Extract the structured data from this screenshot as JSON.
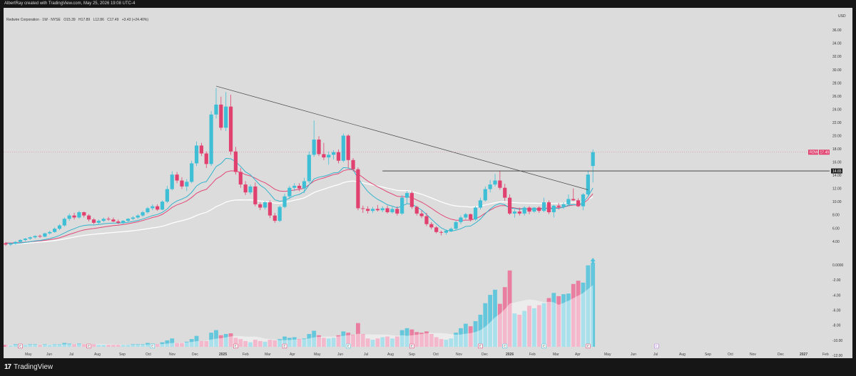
{
  "header": {
    "attribution": "AlbertRay created with TradingView.com, May 25, 2026 19:08 UTC-4"
  },
  "legend": {
    "symbol": "Redwire Corporation · 1W · NYSE",
    "open": "O15.39",
    "high": "H17.89",
    "low": "L12.86",
    "close": "C17.49",
    "change": "+3.43 (+24.40%)"
  },
  "currency": "USD",
  "brand": {
    "logo": "17",
    "name": "TradingView"
  },
  "colors": {
    "up": "#3ebfd6",
    "down": "#e0416f",
    "ema_fast": "#35b3cc",
    "ema_mid": "#e14a78",
    "ema_slow": "#ffffff",
    "vol_up": "#4fc3dc",
    "vol_down": "#ec6d95"
  },
  "chart_data": {
    "type": "candlestick",
    "timeframe": "1W",
    "symbol": "RDW",
    "y_ticks": [
      "36.00",
      "34.00",
      "32.00",
      "30.00",
      "28.00",
      "26.00",
      "24.00",
      "22.00",
      "20.00",
      "18.00",
      "16.00",
      "14.00",
      "12.00",
      "10.00",
      "8.00",
      "6.00",
      "4.00",
      "0.0000",
      "-2.00",
      "-4.00",
      "-6.00",
      "-8.00",
      "-10.00",
      "-12.00"
    ],
    "x_labels": [
      "May",
      "Jun",
      "Jul",
      "Aug",
      "Sep",
      "Oct",
      "Nov",
      "Dec",
      "2025",
      "Feb",
      "Mar",
      "Apr",
      "May",
      "Jun",
      "Jul",
      "Aug",
      "Sep",
      "Oct",
      "Nov",
      "Dec",
      "2026",
      "Feb",
      "Mar",
      "Apr",
      "May",
      "Jun",
      "Jul",
      "Aug",
      "Sep",
      "Oct",
      "Nov",
      "Dec",
      "2027",
      "Feb"
    ],
    "price_range": [
      2.9,
      37.2
    ],
    "candles": [
      [
        3.7,
        3.9,
        3.3,
        3.5
      ],
      [
        3.5,
        3.8,
        3.3,
        3.7
      ],
      [
        3.7,
        4.0,
        3.5,
        3.9
      ],
      [
        3.9,
        4.3,
        3.8,
        4.2
      ],
      [
        4.2,
        4.5,
        4.0,
        4.4
      ],
      [
        4.4,
        4.7,
        4.2,
        4.6
      ],
      [
        4.6,
        4.9,
        4.4,
        4.8
      ],
      [
        4.8,
        5.0,
        4.5,
        4.7
      ],
      [
        4.7,
        5.3,
        4.6,
        5.2
      ],
      [
        5.2,
        5.6,
        5.0,
        5.4
      ],
      [
        5.4,
        6.1,
        5.3,
        5.9
      ],
      [
        5.9,
        6.6,
        5.7,
        6.4
      ],
      [
        6.4,
        7.6,
        6.2,
        7.4
      ],
      [
        7.4,
        8.2,
        7.1,
        7.9
      ],
      [
        7.9,
        8.3,
        7.3,
        7.6
      ],
      [
        7.6,
        8.6,
        7.4,
        8.4
      ],
      [
        8.4,
        8.5,
        7.6,
        7.9
      ],
      [
        7.9,
        8.1,
        7.0,
        7.3
      ],
      [
        7.3,
        7.5,
        6.6,
        6.8
      ],
      [
        6.8,
        7.3,
        6.5,
        7.1
      ],
      [
        7.1,
        7.6,
        6.9,
        7.4
      ],
      [
        7.4,
        7.7,
        7.1,
        7.3
      ],
      [
        7.3,
        7.6,
        6.9,
        7.0
      ],
      [
        7.0,
        7.3,
        6.6,
        6.8
      ],
      [
        6.8,
        7.2,
        6.6,
        7.1
      ],
      [
        7.1,
        7.5,
        6.9,
        7.4
      ],
      [
        7.4,
        7.8,
        7.2,
        7.6
      ],
      [
        7.6,
        8.1,
        7.4,
        7.9
      ],
      [
        7.9,
        8.6,
        7.7,
        8.4
      ],
      [
        8.4,
        9.2,
        8.2,
        9.0
      ],
      [
        9.0,
        9.6,
        8.7,
        9.3
      ],
      [
        9.3,
        9.6,
        8.6,
        8.8
      ],
      [
        8.8,
        10.2,
        8.7,
        10.0
      ],
      [
        10.0,
        12.4,
        9.8,
        11.9
      ],
      [
        11.9,
        14.6,
        11.7,
        14.1
      ],
      [
        14.1,
        14.5,
        12.8,
        13.2
      ],
      [
        13.2,
        13.7,
        11.9,
        12.3
      ],
      [
        12.3,
        13.4,
        11.6,
        13.0
      ],
      [
        13.0,
        16.2,
        12.8,
        15.8
      ],
      [
        15.8,
        19.1,
        15.4,
        18.5
      ],
      [
        18.5,
        18.9,
        16.9,
        17.3
      ],
      [
        17.3,
        17.6,
        15.1,
        15.7
      ],
      [
        15.7,
        23.7,
        15.4,
        23.2
      ],
      [
        23.2,
        27.2,
        22.6,
        24.7
      ],
      [
        24.7,
        25.9,
        20.8,
        21.2
      ],
      [
        21.2,
        26.6,
        20.7,
        24.4
      ],
      [
        24.4,
        26.2,
        17.1,
        17.6
      ],
      [
        17.6,
        18.3,
        14.1,
        14.5
      ],
      [
        14.5,
        15.1,
        12.1,
        12.6
      ],
      [
        12.6,
        13.1,
        11.0,
        11.4
      ],
      [
        11.4,
        12.6,
        11.1,
        12.3
      ],
      [
        12.3,
        12.9,
        9.3,
        9.6
      ],
      [
        9.6,
        9.9,
        8.7,
        9.1
      ],
      [
        9.1,
        10.1,
        8.8,
        9.9
      ],
      [
        9.9,
        10.2,
        7.5,
        7.9
      ],
      [
        7.9,
        8.3,
        6.8,
        7.1
      ],
      [
        7.1,
        9.4,
        6.9,
        9.2
      ],
      [
        9.2,
        11.2,
        9.0,
        10.8
      ],
      [
        10.8,
        12.4,
        10.4,
        12.1
      ],
      [
        12.1,
        12.8,
        11.6,
        12.4
      ],
      [
        12.4,
        12.8,
        11.6,
        12.0
      ],
      [
        12.0,
        13.6,
        11.3,
        13.1
      ],
      [
        13.1,
        17.6,
        12.8,
        17.1
      ],
      [
        17.1,
        22.3,
        16.8,
        19.4
      ],
      [
        19.4,
        19.9,
        16.9,
        17.2
      ],
      [
        17.2,
        18.9,
        16.3,
        16.7
      ],
      [
        16.7,
        17.6,
        15.6,
        17.1
      ],
      [
        17.1,
        17.8,
        16.4,
        17.5
      ],
      [
        17.5,
        17.9,
        15.8,
        16.2
      ],
      [
        16.2,
        20.3,
        16.0,
        20.0
      ],
      [
        20.0,
        20.2,
        15.1,
        16.3
      ],
      [
        16.3,
        16.6,
        14.6,
        14.9
      ],
      [
        14.9,
        15.2,
        8.7,
        9.0
      ],
      [
        9.0,
        9.4,
        8.3,
        8.9
      ],
      [
        8.9,
        9.3,
        8.2,
        8.6
      ],
      [
        8.6,
        9.2,
        8.3,
        8.9
      ],
      [
        8.9,
        9.5,
        8.5,
        8.7
      ],
      [
        8.7,
        9.3,
        8.4,
        9.0
      ],
      [
        9.0,
        9.4,
        8.2,
        8.4
      ],
      [
        8.4,
        9.2,
        8.2,
        8.9
      ],
      [
        8.9,
        9.3,
        7.9,
        8.2
      ],
      [
        8.2,
        11.0,
        8.0,
        10.6
      ],
      [
        10.6,
        11.6,
        9.7,
        11.3
      ],
      [
        11.3,
        11.6,
        8.9,
        9.2
      ],
      [
        9.2,
        9.4,
        7.9,
        8.2
      ],
      [
        8.2,
        8.7,
        7.5,
        7.8
      ],
      [
        7.8,
        8.3,
        6.3,
        6.6
      ],
      [
        6.6,
        6.9,
        5.8,
        6.1
      ],
      [
        6.1,
        6.3,
        5.2,
        5.4
      ],
      [
        5.4,
        5.6,
        4.9,
        5.3
      ],
      [
        5.3,
        5.8,
        5.0,
        5.6
      ],
      [
        5.6,
        6.1,
        5.4,
        5.9
      ],
      [
        5.9,
        7.1,
        5.7,
        6.9
      ],
      [
        6.9,
        7.9,
        6.6,
        7.6
      ],
      [
        7.6,
        8.3,
        7.3,
        8.1
      ],
      [
        8.1,
        8.2,
        7.0,
        7.3
      ],
      [
        7.3,
        9.3,
        7.1,
        9.1
      ],
      [
        9.1,
        10.6,
        8.8,
        10.2
      ],
      [
        10.2,
        12.3,
        10.0,
        11.9
      ],
      [
        11.9,
        13.3,
        11.4,
        12.6
      ],
      [
        12.6,
        14.2,
        12.3,
        13.2
      ],
      [
        13.2,
        14.7,
        11.8,
        12.1
      ],
      [
        12.1,
        12.7,
        10.1,
        10.6
      ],
      [
        10.6,
        11.1,
        8.0,
        8.2
      ],
      [
        8.2,
        8.8,
        7.6,
        8.5
      ],
      [
        8.5,
        9.1,
        7.9,
        8.2
      ],
      [
        8.2,
        9.3,
        7.9,
        9.1
      ],
      [
        9.1,
        9.3,
        8.1,
        8.5
      ],
      [
        8.5,
        9.2,
        8.3,
        9.1
      ],
      [
        9.1,
        9.3,
        8.3,
        8.6
      ],
      [
        8.6,
        10.6,
        8.4,
        9.9
      ],
      [
        9.9,
        10.2,
        8.1,
        8.4
      ],
      [
        8.4,
        9.5,
        7.6,
        9.4
      ],
      [
        9.4,
        9.8,
        8.8,
        9.2
      ],
      [
        9.2,
        9.9,
        8.9,
        9.6
      ],
      [
        9.6,
        11.1,
        9.3,
        10.4
      ],
      [
        10.4,
        12.0,
        10.1,
        10.2
      ],
      [
        10.2,
        10.5,
        9.2,
        9.3
      ],
      [
        9.3,
        11.3,
        8.7,
        11.1
      ],
      [
        11.1,
        14.7,
        10.9,
        14.1
      ],
      [
        15.4,
        17.9,
        12.9,
        17.5
      ]
    ],
    "ema_fast": [
      3.7,
      3.66,
      3.67,
      3.74,
      3.83,
      3.93,
      4.05,
      4.13,
      4.26,
      4.41,
      4.62,
      4.88,
      5.25,
      5.63,
      5.9,
      6.21,
      6.39,
      6.47,
      6.46,
      6.53,
      6.64,
      6.72,
      6.75,
      6.75,
      6.79,
      6.88,
      7.0,
      7.15,
      7.35,
      7.62,
      7.89,
      8.06,
      8.38,
      8.89,
      9.64,
      10.1,
      10.39,
      10.74,
      11.41,
      12.38,
      12.86,
      13.05,
      14.14,
      15.32,
      15.77,
      16.55,
      16.49,
      16.05,
      15.34,
      14.52,
      14.07,
      13.28,
      12.49,
      11.99,
      11.17,
      10.28,
      10.06,
      10.17,
      10.55,
      10.91,
      11.1,
      11.51,
      12.53,
      13.44,
      13.71,
      13.85,
      14.06,
      14.37,
      14.43,
      15.15,
      15.09,
      14.82,
      13.53,
      12.48,
      11.54,
      10.88,
      10.34,
      9.97,
      9.53,
      9.32,
      9.07,
      9.34,
      9.69,
      9.62,
      9.19,
      8.72,
      8.05,
      7.36,
      6.64,
      6.03,
      5.67,
      5.52,
      5.67,
      5.9,
      6.24,
      6.31,
      6.77,
      7.36,
      8.16,
      8.88,
      9.44,
      9.72,
      9.52,
      9.03,
      8.97,
      8.84,
      8.91,
      8.81,
      8.87,
      8.82,
      8.99,
      8.89,
      8.98,
      9.01,
      9.13,
      9.48,
      9.57,
      9.5,
      9.79,
      10.78,
      12.07
    ],
    "ema_mid": [
      3.75,
      3.74,
      3.76,
      3.8,
      3.86,
      3.92,
      4.0,
      4.05,
      4.14,
      4.24,
      4.36,
      4.53,
      4.78,
      5.05,
      5.27,
      5.52,
      5.71,
      5.84,
      5.93,
      6.04,
      6.17,
      6.28,
      6.37,
      6.44,
      6.53,
      6.65,
      6.79,
      6.95,
      7.14,
      7.36,
      7.6,
      7.76,
      8.08,
      8.55,
      9.12,
      9.51,
      9.78,
      10.1,
      10.63,
      11.27,
      11.64,
      11.86,
      12.62,
      13.44,
      13.87,
      14.47,
      14.67,
      14.65,
      14.43,
      14.1,
      13.89,
      13.56,
      13.17,
      12.86,
      12.4,
      11.87,
      11.61,
      11.55,
      11.64,
      11.76,
      11.85,
      12.05,
      12.56,
      13.11,
      13.39,
      13.59,
      13.85,
      14.11,
      14.24,
      14.68,
      14.87,
      14.85,
      14.23,
      13.66,
      13.11,
      12.68,
      12.25,
      11.87,
      11.47,
      11.15,
      10.82,
      10.74,
      10.78,
      10.6,
      10.26,
      9.91,
      9.48,
      9.0,
      8.49,
      8.02,
      7.64,
      7.34,
      7.2,
      7.16,
      7.2,
      7.2,
      7.42,
      7.76,
      8.26,
      8.71,
      9.12,
      9.38,
      9.4,
      9.16,
      9.05,
      8.93,
      8.94,
      8.9,
      8.94,
      8.92,
      9.04,
      9.0,
      9.06,
      9.09,
      9.16,
      9.37,
      9.49,
      9.51,
      9.72,
      10.33,
      11.19
    ],
    "ema_slow": [
      3.55,
      3.57,
      3.6,
      3.64,
      3.69,
      3.75,
      3.82,
      3.88,
      3.95,
      4.02,
      4.11,
      4.21,
      4.35,
      4.5,
      4.63,
      4.78,
      4.9,
      4.99,
      5.06,
      5.13,
      5.2,
      5.27,
      5.33,
      5.39,
      5.45,
      5.52,
      5.6,
      5.69,
      5.79,
      5.91,
      6.03,
      6.13,
      6.28,
      6.48,
      6.74,
      6.95,
      7.12,
      7.31,
      7.58,
      7.91,
      8.18,
      8.38,
      8.78,
      9.24,
      9.56,
      9.94,
      10.14,
      10.24,
      10.27,
      10.24,
      10.27,
      10.19,
      10.09,
      10.04,
      9.92,
      9.78,
      9.77,
      9.86,
      10.04,
      10.22,
      10.36,
      10.57,
      10.96,
      11.38,
      11.65,
      11.88,
      12.13,
      12.38,
      12.57,
      12.88,
      13.04,
      13.13,
      12.98,
      12.84,
      12.68,
      12.53,
      12.37,
      12.22,
      12.04,
      11.88,
      11.7,
      11.67,
      11.68,
      11.55,
      11.34,
      11.13,
      10.85,
      10.56,
      10.26,
      9.97,
      9.71,
      9.49,
      9.35,
      9.27,
      9.25,
      9.18,
      9.23,
      9.33,
      9.5,
      9.67,
      9.84,
      9.96,
      9.98,
      9.9,
      9.86,
      9.8,
      9.79,
      9.76,
      9.77,
      9.74,
      9.78,
      9.73,
      9.75,
      9.75,
      9.78,
      9.87,
      9.92,
      9.93,
      10.04,
      10.33,
      10.73
    ],
    "volume_steps": [
      0.3,
      0.2,
      0.4,
      0.4,
      0.3,
      0.4,
      0.4,
      0.3,
      0.4,
      0.3,
      0.4,
      0.4,
      0.6,
      0.5,
      0.4,
      0.5,
      0.4,
      0.3,
      0.4,
      0.3,
      0.3,
      0.3,
      0.3,
      0.3,
      0.3,
      0.3,
      0.4,
      0.4,
      0.4,
      0.6,
      0.5,
      0.4,
      0.7,
      1.0,
      1.3,
      0.6,
      0.6,
      0.8,
      1.2,
      1.7,
      0.9,
      0.9,
      2.2,
      2.6,
      1.8,
      2.0,
      2.1,
      1.4,
      1.2,
      0.9,
      0.7,
      1.1,
      0.9,
      0.8,
      1.1,
      1.0,
      1.2,
      1.6,
      1.4,
      1.5,
      1.2,
      1.3,
      2.0,
      2.5,
      1.8,
      1.4,
      1.3,
      1.4,
      1.8,
      2.4,
      2.2,
      1.9,
      3.7,
      2.0,
      1.3,
      1.1,
      1.3,
      1.5,
      1.6,
      1.3,
      1.6,
      2.6,
      2.9,
      2.7,
      2.3,
      2.2,
      2.4,
      2.0,
      1.5,
      1.2,
      1.1,
      1.3,
      2.2,
      2.9,
      3.6,
      3.2,
      4.0,
      5.0,
      6.8,
      8.1,
      8.9,
      6.7,
      9.3,
      11.9,
      5.2,
      5.0,
      5.6,
      6.4,
      6.0,
      6.5,
      6.8,
      7.6,
      8.4,
      7.9,
      8.2,
      8.3,
      9.8,
      10.3,
      10.0,
      12.7,
      13.1
    ],
    "volume_max": 13.1,
    "trendline": {
      "from": [
        43,
        27.5
      ],
      "to": [
        119,
        11.8
      ]
    },
    "resistance": {
      "value": 14.65,
      "label": "14.65",
      "from_index": 77
    },
    "last_price": {
      "symbol": "RDW",
      "label": "17.49",
      "value": 17.49
    },
    "event_tags": [
      {
        "index": 3,
        "label": "E"
      },
      {
        "index": 17,
        "label": "E"
      },
      {
        "index": 30,
        "label": "E"
      },
      {
        "index": 47,
        "label": "E"
      },
      {
        "index": 57,
        "label": "E"
      },
      {
        "index": 70,
        "label": "E"
      },
      {
        "index": 83,
        "label": "E"
      },
      {
        "index": 97,
        "label": "E"
      },
      {
        "index": 102,
        "label": "E"
      },
      {
        "index": 110,
        "label": "E"
      },
      {
        "index": 119,
        "label": "E"
      },
      {
        "index": 133,
        "label": "E"
      }
    ]
  }
}
